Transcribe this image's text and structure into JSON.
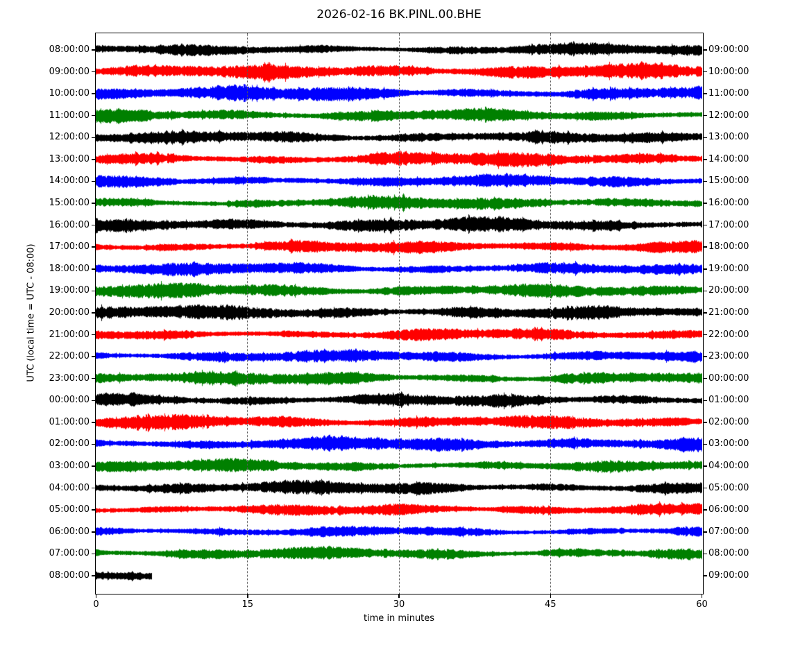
{
  "title": "2026-02-16 BK.PINL.00.BHE",
  "chart_data": {
    "type": "line",
    "variant": "seismogram-day-plot",
    "title": "2026-02-16 BK.PINL.00.BHE",
    "xlabel": "time in minutes",
    "ylabel": "UTC (local time = UTC - 08:00)",
    "xlim": [
      0,
      60
    ],
    "x_ticks": [
      0,
      15,
      30,
      45,
      60
    ],
    "x_tick_labels": [
      "0",
      "15",
      "30",
      "45",
      "60"
    ],
    "grid": {
      "vertical_dotted_at_minutes": [
        15,
        30,
        45
      ],
      "horizontal": false
    },
    "legend": "none",
    "color_cycle": [
      "#000000",
      "#ff0000",
      "#0000ff",
      "#008000"
    ],
    "rows": [
      {
        "left_label": "08:00:00",
        "right_label": "09:00:00",
        "color": "#000000",
        "start_min": 0,
        "duration_min": 60
      },
      {
        "left_label": "09:00:00",
        "right_label": "10:00:00",
        "color": "#ff0000",
        "start_min": 0,
        "duration_min": 60
      },
      {
        "left_label": "10:00:00",
        "right_label": "11:00:00",
        "color": "#0000ff",
        "start_min": 0,
        "duration_min": 60
      },
      {
        "left_label": "11:00:00",
        "right_label": "12:00:00",
        "color": "#008000",
        "start_min": 0,
        "duration_min": 60
      },
      {
        "left_label": "12:00:00",
        "right_label": "13:00:00",
        "color": "#000000",
        "start_min": 0,
        "duration_min": 60
      },
      {
        "left_label": "13:00:00",
        "right_label": "14:00:00",
        "color": "#ff0000",
        "start_min": 0,
        "duration_min": 60
      },
      {
        "left_label": "14:00:00",
        "right_label": "15:00:00",
        "color": "#0000ff",
        "start_min": 0,
        "duration_min": 60
      },
      {
        "left_label": "15:00:00",
        "right_label": "16:00:00",
        "color": "#008000",
        "start_min": 0,
        "duration_min": 60
      },
      {
        "left_label": "16:00:00",
        "right_label": "17:00:00",
        "color": "#000000",
        "start_min": 0,
        "duration_min": 60
      },
      {
        "left_label": "17:00:00",
        "right_label": "18:00:00",
        "color": "#ff0000",
        "start_min": 0,
        "duration_min": 60
      },
      {
        "left_label": "18:00:00",
        "right_label": "19:00:00",
        "color": "#0000ff",
        "start_min": 0,
        "duration_min": 60
      },
      {
        "left_label": "19:00:00",
        "right_label": "20:00:00",
        "color": "#008000",
        "start_min": 0,
        "duration_min": 60
      },
      {
        "left_label": "20:00:00",
        "right_label": "21:00:00",
        "color": "#000000",
        "start_min": 0,
        "duration_min": 60
      },
      {
        "left_label": "21:00:00",
        "right_label": "22:00:00",
        "color": "#ff0000",
        "start_min": 0,
        "duration_min": 60
      },
      {
        "left_label": "22:00:00",
        "right_label": "23:00:00",
        "color": "#0000ff",
        "start_min": 0,
        "duration_min": 60
      },
      {
        "left_label": "23:00:00",
        "right_label": "00:00:00",
        "color": "#008000",
        "start_min": 0,
        "duration_min": 60
      },
      {
        "left_label": "00:00:00",
        "right_label": "01:00:00",
        "color": "#000000",
        "start_min": 0,
        "duration_min": 60
      },
      {
        "left_label": "01:00:00",
        "right_label": "02:00:00",
        "color": "#ff0000",
        "start_min": 0,
        "duration_min": 60
      },
      {
        "left_label": "02:00:00",
        "right_label": "03:00:00",
        "color": "#0000ff",
        "start_min": 0,
        "duration_min": 60
      },
      {
        "left_label": "03:00:00",
        "right_label": "04:00:00",
        "color": "#008000",
        "start_min": 0,
        "duration_min": 60
      },
      {
        "left_label": "04:00:00",
        "right_label": "05:00:00",
        "color": "#000000",
        "start_min": 0,
        "duration_min": 60
      },
      {
        "left_label": "05:00:00",
        "right_label": "06:00:00",
        "color": "#ff0000",
        "start_min": 0,
        "duration_min": 60
      },
      {
        "left_label": "06:00:00",
        "right_label": "07:00:00",
        "color": "#0000ff",
        "start_min": 0,
        "duration_min": 60
      },
      {
        "left_label": "07:00:00",
        "right_label": "08:00:00",
        "color": "#008000",
        "start_min": 0,
        "duration_min": 60
      },
      {
        "left_label": "08:00:00",
        "right_label": "09:00:00",
        "color": "#000000",
        "start_min": 0,
        "duration_min": 5.5
      }
    ]
  }
}
